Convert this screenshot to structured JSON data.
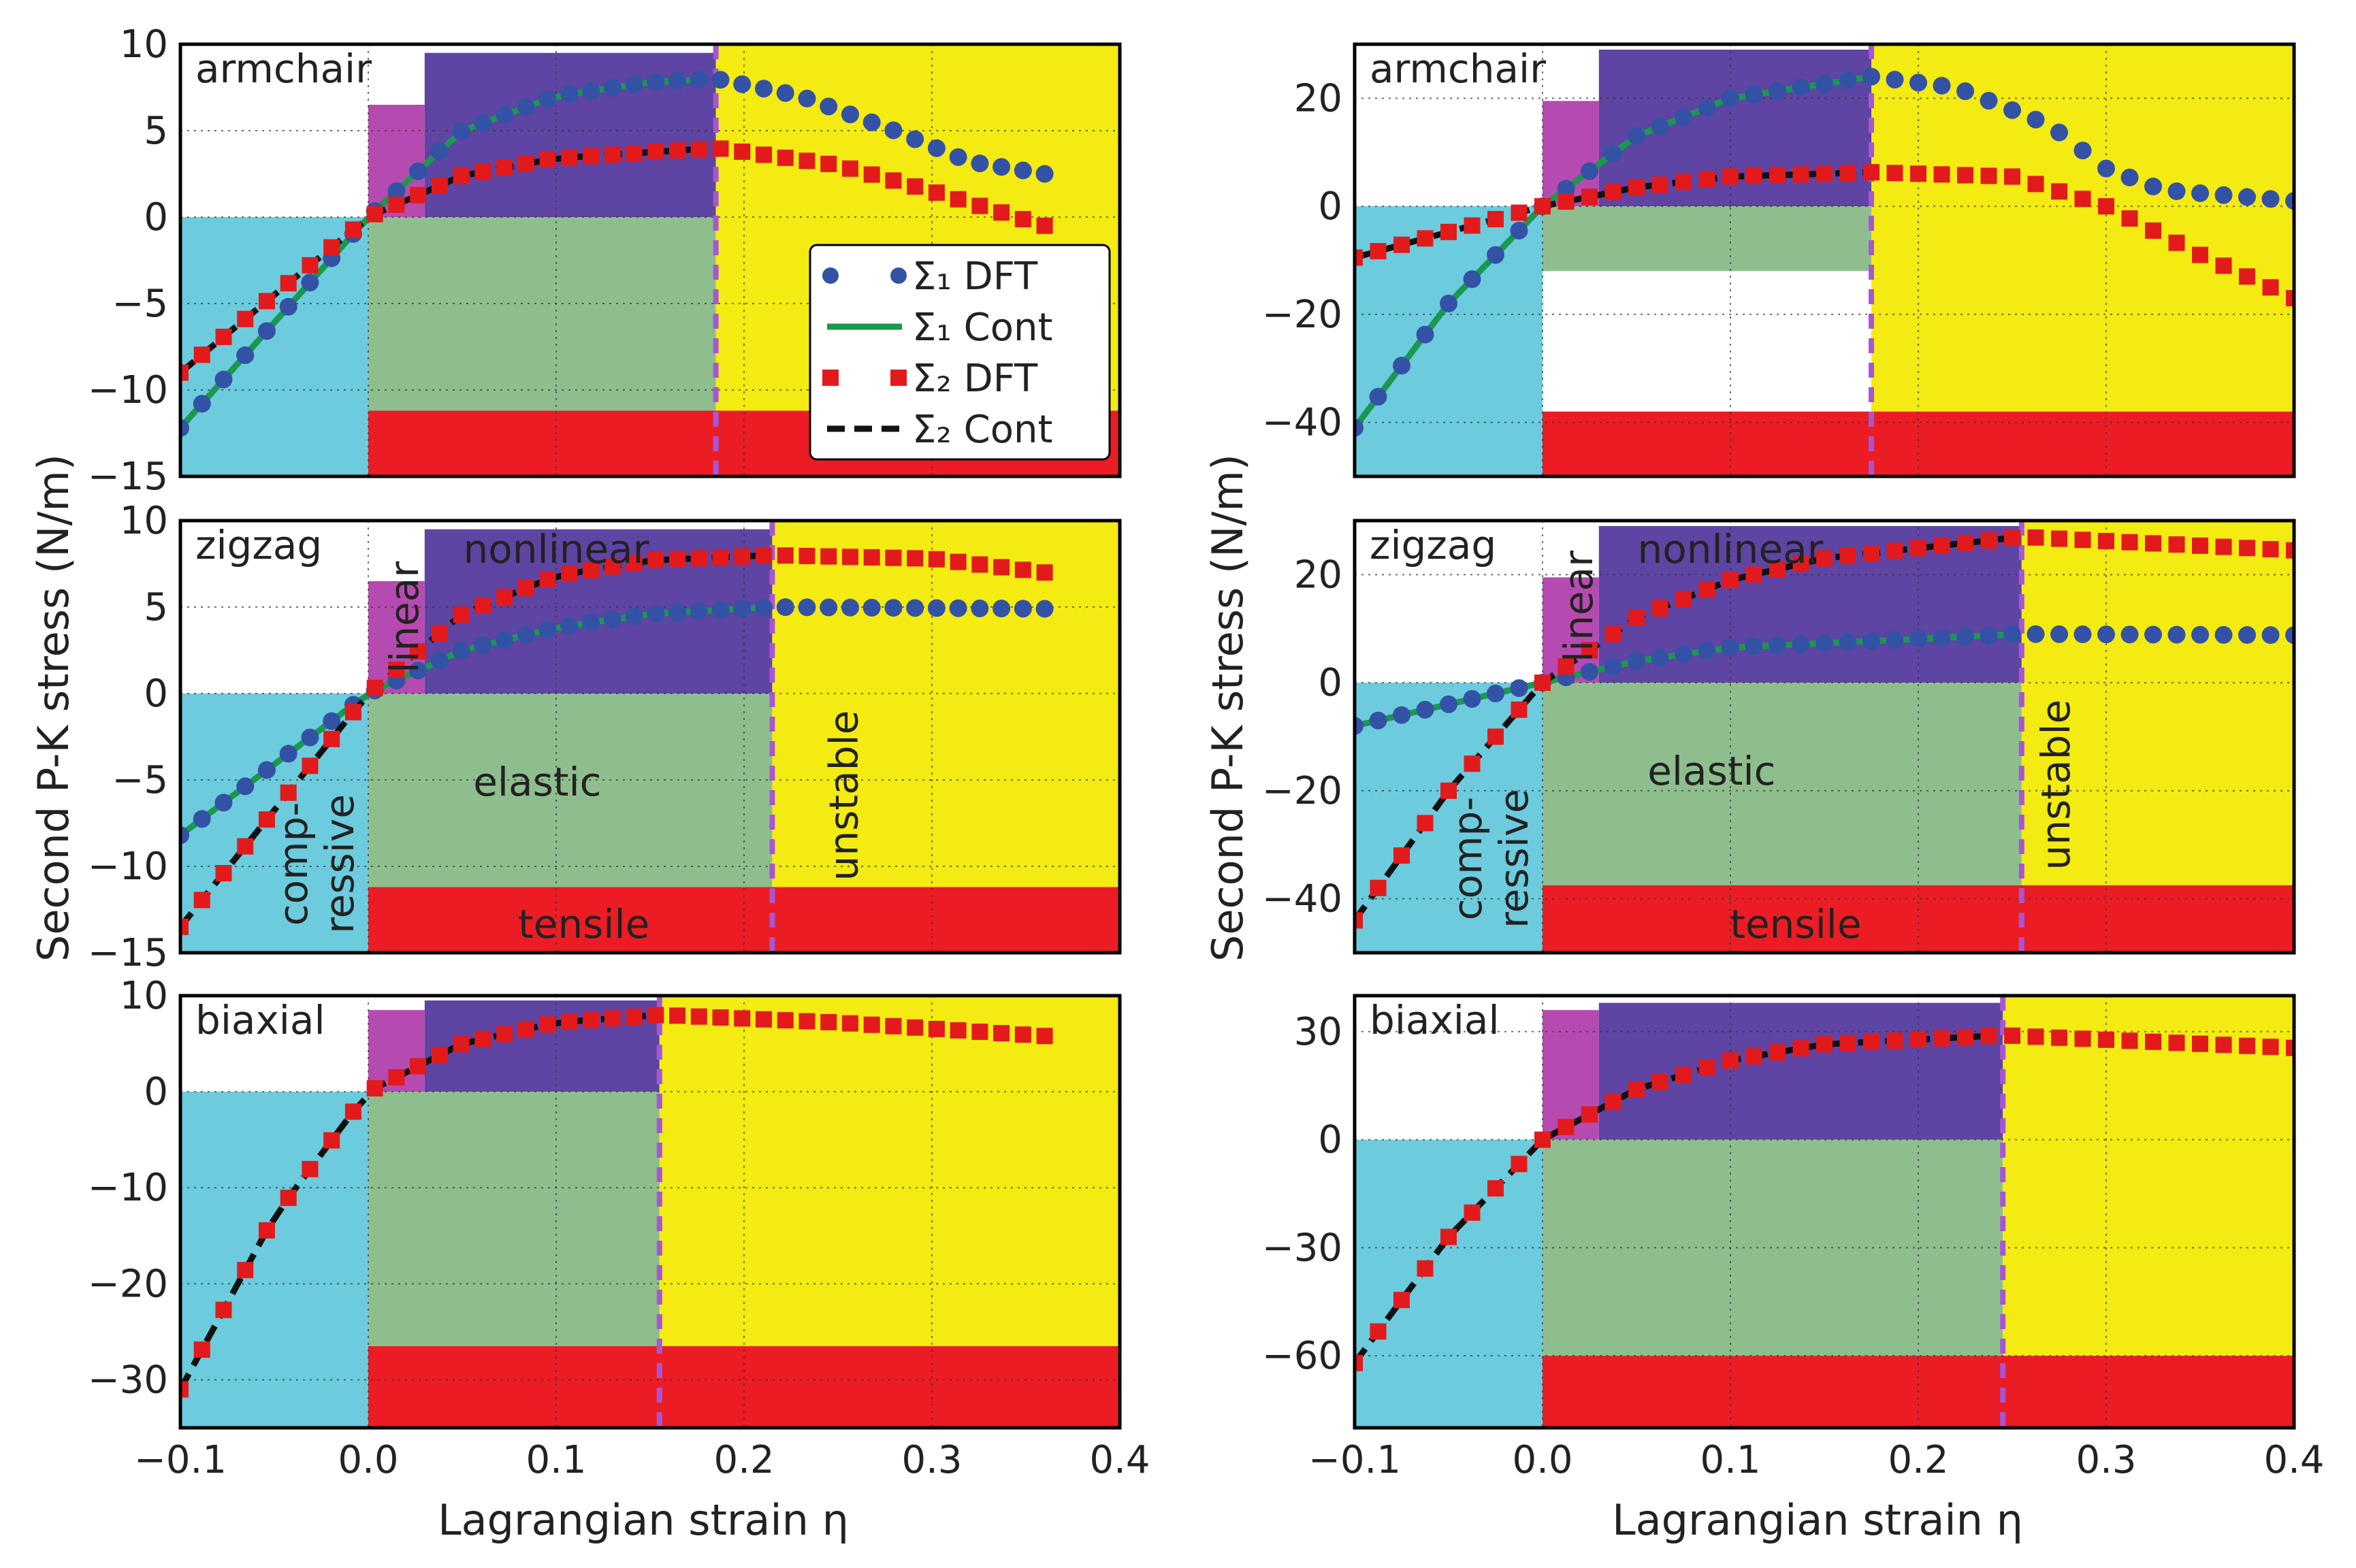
{
  "figure": {
    "ylabel": "Second P-K stress (N/m)",
    "xlabel": "Lagrangian strain η",
    "x_ticks": [
      "−0.1",
      "0.0",
      "0.1",
      "0.2",
      "0.3",
      "0.4"
    ],
    "legend": {
      "s1_dft": "Σ₁  DFT",
      "s1_cont": "Σ₁  Cont",
      "s2_dft": "Σ₂  DFT",
      "s2_cont": "Σ₂  Cont"
    },
    "region_labels": {
      "linear": "linear",
      "nonlinear": "nonlinear",
      "elastic": "elastic",
      "unstable": "unstable",
      "compressive_1": "comp-",
      "compressive_2": "ressive",
      "tensile": "tensile"
    },
    "colors": {
      "compressive": "#6ccbdc",
      "linear": "#b54bb0",
      "nonlinear": "#5e44a3",
      "elastic": "#8fbe8e",
      "unstable": "#f3eb12",
      "tensile": "#ec1c24",
      "white_band": "#ffffff",
      "divider": "#a855d4",
      "s1_marker": "#3352a6",
      "s1_line": "#1a9850",
      "s2_marker": "#e31a1c",
      "s2_line": "#111111",
      "grid": "#333333"
    }
  },
  "chart_data": [
    {
      "type": "line",
      "panel": "left-top",
      "title": "armchair",
      "xlim": [
        -0.1,
        0.4
      ],
      "ylim": [
        -15,
        10
      ],
      "y_ticks": [
        "10",
        "5",
        "0",
        "−5",
        "−10",
        "−15"
      ],
      "y_tick_values": [
        10,
        5,
        0,
        -5,
        -10,
        -15
      ],
      "regions": {
        "linear_end": 0.03,
        "nonlinear_end": 0.185,
        "linear_top": 6.5,
        "nonlinear_top": 9.5,
        "tensile_top": -11.2,
        "white_band": null
      },
      "show_legend": true,
      "show_region_text": false,
      "series": [
        {
          "name": "Σ₁ DFT",
          "x_range": [
            -0.1,
            0.36
          ],
          "key": [
            [
              -0.1,
              -12.2
            ],
            [
              0,
              0
            ],
            [
              0.05,
              5.0
            ],
            [
              0.1,
              7.0
            ],
            [
              0.15,
              7.8
            ],
            [
              0.185,
              8.0
            ],
            [
              0.23,
              7.0
            ],
            [
              0.28,
              5.0
            ],
            [
              0.32,
              3.2
            ],
            [
              0.36,
              2.5
            ]
          ]
        },
        {
          "name": "Σ₂ DFT",
          "x_range": [
            -0.1,
            0.36
          ],
          "key": [
            [
              -0.1,
              -9.0
            ],
            [
              0,
              0
            ],
            [
              0.05,
              2.4
            ],
            [
              0.1,
              3.4
            ],
            [
              0.185,
              4.0
            ],
            [
              0.25,
              3.0
            ],
            [
              0.3,
              1.5
            ],
            [
              0.36,
              -0.5
            ]
          ]
        }
      ]
    },
    {
      "type": "line",
      "panel": "left-middle",
      "title": "zigzag",
      "xlim": [
        -0.1,
        0.4
      ],
      "ylim": [
        -15,
        10
      ],
      "y_ticks": [
        "10",
        "5",
        "0",
        "−5",
        "−10",
        "−15"
      ],
      "y_tick_values": [
        10,
        5,
        0,
        -5,
        -10,
        -15
      ],
      "regions": {
        "linear_end": 0.03,
        "nonlinear_end": 0.215,
        "linear_top": 6.5,
        "nonlinear_top": 9.5,
        "tensile_top": -11.2,
        "white_band": null
      },
      "show_legend": false,
      "show_region_text": true,
      "series": [
        {
          "name": "Σ₁ DFT",
          "x_range": [
            -0.1,
            0.36
          ],
          "key": [
            [
              -0.1,
              -8.2
            ],
            [
              0,
              0
            ],
            [
              0.05,
              2.5
            ],
            [
              0.1,
              3.8
            ],
            [
              0.15,
              4.6
            ],
            [
              0.215,
              5.0
            ],
            [
              0.36,
              4.9
            ]
          ]
        },
        {
          "name": "Σ₂ DFT",
          "x_range": [
            -0.1,
            0.36
          ],
          "key": [
            [
              -0.1,
              -13.5
            ],
            [
              0,
              0
            ],
            [
              0.05,
              4.6
            ],
            [
              0.1,
              6.8
            ],
            [
              0.15,
              7.7
            ],
            [
              0.215,
              8.0
            ],
            [
              0.3,
              7.8
            ],
            [
              0.36,
              7.0
            ]
          ]
        }
      ]
    },
    {
      "type": "line",
      "panel": "left-bottom",
      "title": "biaxial",
      "xlim": [
        -0.1,
        0.4
      ],
      "ylim": [
        -35,
        10
      ],
      "y_ticks": [
        "10",
        "0",
        "−10",
        "−20",
        "−30"
      ],
      "y_tick_values": [
        10,
        0,
        -10,
        -20,
        -30
      ],
      "regions": {
        "linear_end": 0.03,
        "nonlinear_end": 0.155,
        "linear_top": 8.5,
        "nonlinear_top": 9.5,
        "tensile_top": -26.5,
        "white_band": null
      },
      "show_legend": false,
      "show_region_text": false,
      "series": [
        {
          "name": "Σ₂ DFT",
          "x_range": [
            -0.1,
            0.36
          ],
          "key": [
            [
              -0.1,
              -31.0
            ],
            [
              -0.05,
              -13.0
            ],
            [
              0,
              0
            ],
            [
              0.05,
              5.0
            ],
            [
              0.1,
              7.2
            ],
            [
              0.155,
              8.0
            ],
            [
              0.25,
              7.2
            ],
            [
              0.36,
              5.8
            ]
          ]
        }
      ]
    },
    {
      "type": "line",
      "panel": "right-top",
      "title": "armchair",
      "xlim": [
        -0.1,
        0.4
      ],
      "ylim": [
        -50,
        30
      ],
      "y_ticks": [
        "20",
        "0",
        "−20",
        "−40"
      ],
      "y_tick_values": [
        20,
        0,
        -20,
        -40
      ],
      "regions": {
        "linear_end": 0.03,
        "nonlinear_end": 0.175,
        "linear_top": 19.5,
        "nonlinear_top": 29,
        "tensile_top": -38,
        "white_band": [
          -12,
          -38
        ]
      },
      "show_legend": false,
      "show_region_text": false,
      "series": [
        {
          "name": "Σ₁ DFT",
          "x_range": [
            -0.1,
            0.4
          ],
          "key": [
            [
              -0.1,
              -41
            ],
            [
              -0.05,
              -18
            ],
            [
              0,
              0
            ],
            [
              0.05,
              13
            ],
            [
              0.1,
              20
            ],
            [
              0.175,
              24
            ],
            [
              0.22,
              22
            ],
            [
              0.27,
              15
            ],
            [
              0.3,
              7
            ],
            [
              0.33,
              3
            ],
            [
              0.4,
              1
            ]
          ]
        },
        {
          "name": "Σ₂ DFT",
          "x_range": [
            -0.1,
            0.4
          ],
          "key": [
            [
              -0.1,
              -9.5
            ],
            [
              0,
              0
            ],
            [
              0.05,
              3.5
            ],
            [
              0.1,
              5.5
            ],
            [
              0.175,
              6.3
            ],
            [
              0.25,
              5.5
            ],
            [
              0.3,
              0
            ],
            [
              0.35,
              -9
            ],
            [
              0.4,
              -17
            ]
          ]
        }
      ]
    },
    {
      "type": "line",
      "panel": "right-middle",
      "title": "zigzag",
      "xlim": [
        -0.1,
        0.4
      ],
      "ylim": [
        -50,
        30
      ],
      "y_ticks": [
        "20",
        "0",
        "−20",
        "−40"
      ],
      "y_tick_values": [
        20,
        0,
        -20,
        -40
      ],
      "regions": {
        "linear_end": 0.03,
        "nonlinear_end": 0.255,
        "linear_top": 19.5,
        "nonlinear_top": 29,
        "tensile_top": -37.5,
        "white_band": null
      },
      "show_legend": false,
      "show_region_text": true,
      "series": [
        {
          "name": "Σ₁ DFT",
          "x_range": [
            -0.1,
            0.4
          ],
          "key": [
            [
              -0.1,
              -8
            ],
            [
              -0.05,
              -4
            ],
            [
              0,
              0
            ],
            [
              0.05,
              4
            ],
            [
              0.1,
              6.5
            ],
            [
              0.255,
              9
            ],
            [
              0.4,
              8.8
            ]
          ]
        },
        {
          "name": "Σ₂ DFT",
          "x_range": [
            -0.1,
            0.4
          ],
          "key": [
            [
              -0.1,
              -44
            ],
            [
              -0.05,
              -20
            ],
            [
              0,
              0
            ],
            [
              0.05,
              12
            ],
            [
              0.1,
              19
            ],
            [
              0.15,
              23
            ],
            [
              0.255,
              27
            ],
            [
              0.4,
              24.5
            ]
          ]
        }
      ]
    },
    {
      "type": "line",
      "panel": "right-bottom",
      "title": "biaxial",
      "xlim": [
        -0.1,
        0.4
      ],
      "ylim": [
        -80,
        40
      ],
      "y_ticks": [
        "30",
        "0",
        "−30",
        "−60"
      ],
      "y_tick_values": [
        30,
        0,
        -30,
        -60
      ],
      "regions": {
        "linear_end": 0.03,
        "nonlinear_end": 0.245,
        "linear_top": 36,
        "nonlinear_top": 38,
        "tensile_top": -60,
        "white_band": null
      },
      "show_legend": false,
      "show_region_text": false,
      "series": [
        {
          "name": "Σ₂ DFT",
          "x_range": [
            -0.1,
            0.4
          ],
          "key": [
            [
              -0.1,
              -62
            ],
            [
              -0.05,
              -27
            ],
            [
              0,
              0
            ],
            [
              0.05,
              14
            ],
            [
              0.1,
              22
            ],
            [
              0.15,
              26.5
            ],
            [
              0.245,
              29
            ],
            [
              0.4,
              25.5
            ]
          ]
        }
      ]
    }
  ]
}
